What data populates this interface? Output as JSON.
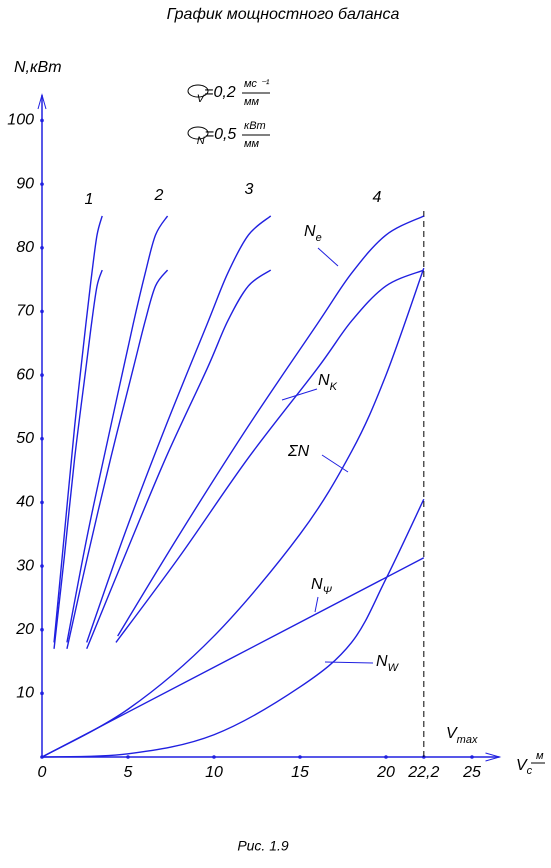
{
  "chart_data": {
    "type": "line",
    "title": "График мощностного баланса",
    "caption": "Рис. 1.9",
    "y_label": "N,кВт",
    "x_label": {
      "main": "V",
      "sub": "c",
      "numerator": "м"
    },
    "color": "#2020e0",
    "xlim": [
      0,
      26.6
    ],
    "ylim": [
      0,
      104
    ],
    "xticks": [
      0,
      5,
      10,
      15,
      20,
      {
        "value": 22.2,
        "label": "22,2"
      },
      25
    ],
    "yticks": [
      10,
      20,
      30,
      40,
      50,
      60,
      70,
      80,
      90,
      100
    ],
    "scales": [
      {
        "symbol": "μ",
        "sub": "V",
        "value": "=0,2",
        "numerator": "мс ⁻¹",
        "denominator": "мм"
      },
      {
        "symbol": "μ",
        "sub": "N",
        "value": "=0,5",
        "numerator": "кВт",
        "denominator": "мм"
      }
    ],
    "gears": [
      "1",
      "2",
      "3",
      "4"
    ],
    "curve_labels": [
      {
        "main": "N",
        "sub": "e"
      },
      {
        "main": "N",
        "sub": "K"
      },
      {
        "main": "ΣN",
        "sub": ""
      },
      {
        "main": "N",
        "sub": "Ψ"
      },
      {
        "main": "N",
        "sub": "W"
      },
      {
        "main": "V",
        "sub": "max"
      }
    ],
    "series": [
      {
        "x": [
          0.7,
          1.3,
          1.9,
          2.55,
          2.9,
          3.2,
          3.5
        ],
        "values": [
          18,
          35,
          52,
          68,
          76,
          82,
          85
        ]
      },
      {
        "x": [
          0.7,
          1.3,
          1.9,
          2.55,
          2.9,
          3.2,
          3.5
        ],
        "values": [
          17,
          31.5,
          47,
          61,
          68.5,
          74,
          76.5
        ]
      },
      {
        "x": [
          1.45,
          2.65,
          4,
          5.3,
          6,
          6.6,
          7.3
        ],
        "values": [
          18,
          35,
          52,
          68,
          76,
          82,
          85
        ]
      },
      {
        "x": [
          1.45,
          2.65,
          4,
          5.3,
          6,
          6.6,
          7.3
        ],
        "values": [
          17,
          31.5,
          47,
          61,
          68.5,
          74,
          76.5
        ]
      },
      {
        "x": [
          2.6,
          4.8,
          7.2,
          9.6,
          10.8,
          12,
          13.3
        ],
        "values": [
          18,
          35,
          52,
          68,
          76,
          82,
          85
        ]
      },
      {
        "x": [
          2.6,
          4.8,
          7.2,
          9.6,
          10.8,
          12,
          13.3
        ],
        "values": [
          17,
          31.5,
          47,
          61,
          68.5,
          74,
          76.5
        ]
      },
      {
        "x": [
          4.4,
          8,
          12,
          16,
          18,
          20,
          22.2
        ],
        "values": [
          19,
          35,
          52,
          68,
          76,
          82,
          85
        ]
      },
      {
        "x": [
          4.3,
          8,
          12,
          16,
          18,
          20,
          22.2
        ],
        "values": [
          18,
          31.5,
          47,
          61,
          68.5,
          74,
          76.5
        ]
      },
      {
        "x": [
          0,
          5,
          10,
          15,
          18,
          20,
          22.2
        ],
        "values": [
          0,
          7.5,
          19,
          35,
          48,
          60,
          76.8
        ]
      },
      {
        "x": [
          0,
          22.2
        ],
        "values": [
          0,
          31.3
        ]
      },
      {
        "x": [
          0,
          5,
          10,
          15,
          18,
          20,
          22.2
        ],
        "values": [
          0,
          0.5,
          3.5,
          11,
          18,
          28,
          40.5
        ]
      }
    ]
  }
}
